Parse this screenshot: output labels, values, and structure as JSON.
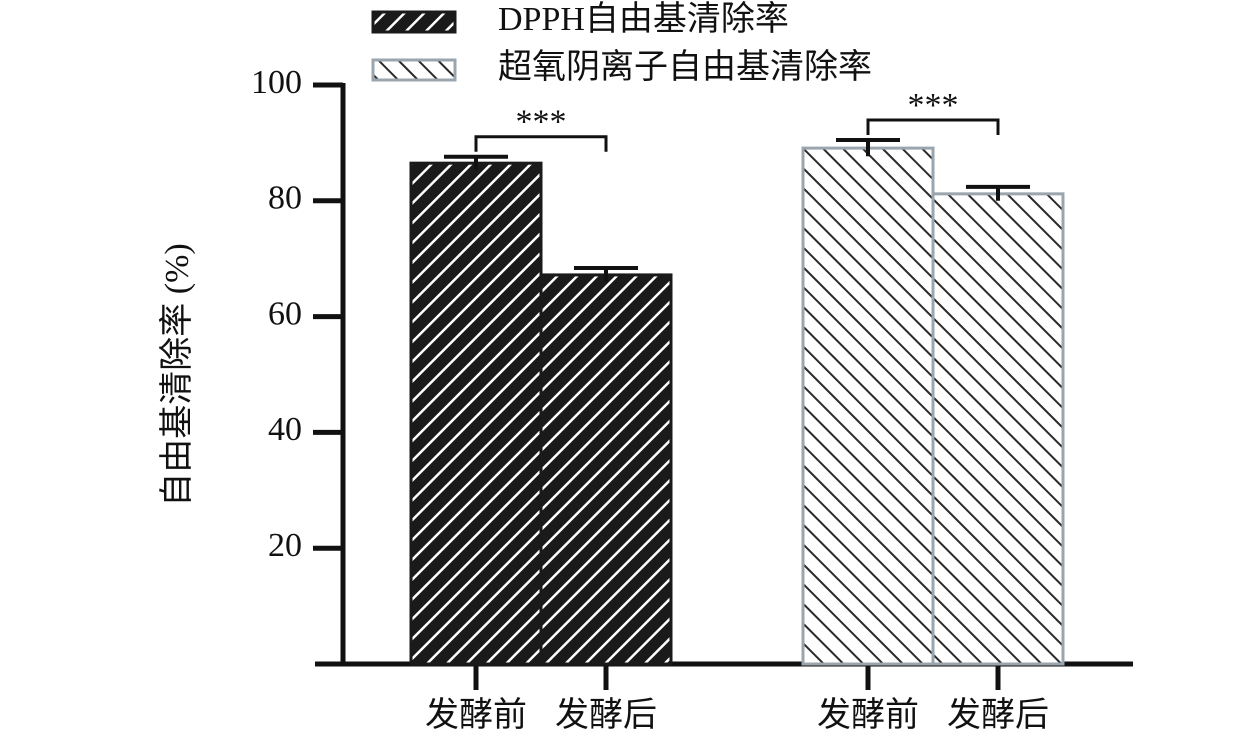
{
  "chart_data": {
    "type": "bar",
    "y_label": "自由基清除率 (%)",
    "categories": [
      "发酵前",
      "发酵后",
      "发酵前",
      "发酵后"
    ],
    "series": [
      {
        "name": "DPPH自由基清除率",
        "color": "#1a1a1a",
        "values": [
          86.5,
          67.2,
          null,
          null
        ],
        "errors": [
          1.1,
          1.2,
          null,
          null
        ]
      },
      {
        "name": "超氧阴离子自由基清除率",
        "color": "#9aa5ad",
        "values": [
          null,
          null,
          89.1,
          81.2
        ],
        "errors": [
          null,
          null,
          1.4,
          1.2
        ]
      }
    ],
    "annotations": [
      {
        "text": "***"
      },
      {
        "text": "***"
      }
    ],
    "ylim": [
      0,
      100
    ],
    "yticks": [
      20,
      40,
      60,
      80,
      100
    ],
    "grid": false
  }
}
